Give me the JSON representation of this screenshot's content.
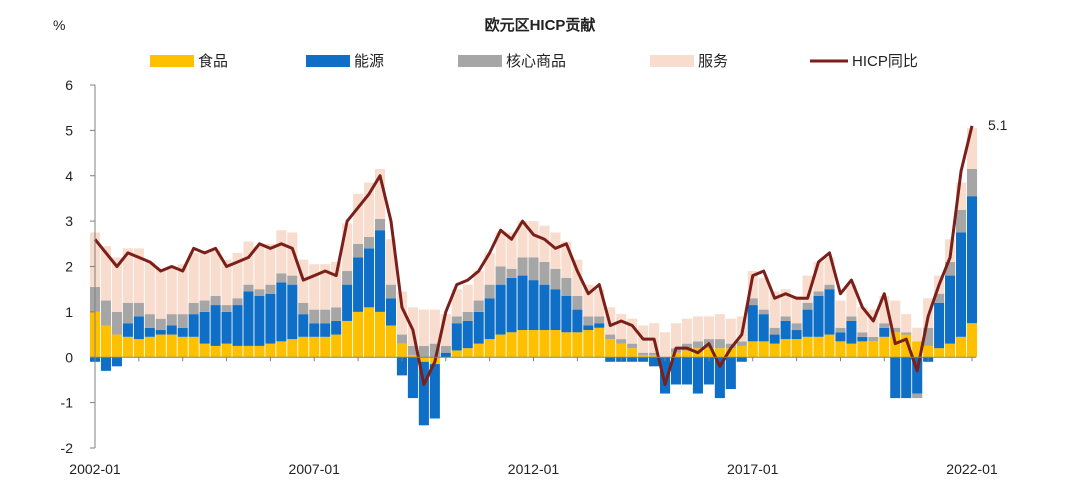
{
  "chart_data": {
    "type": "area",
    "title": "欧元区HICP贡献",
    "ylabel": "%",
    "xlabel": "",
    "ylim": [
      -2,
      6
    ],
    "yticks": [
      -2,
      -1,
      0,
      1,
      2,
      3,
      4,
      5,
      6
    ],
    "x_start": "2002-01",
    "x_end": "2022-01",
    "xtick_labels": [
      "2002-01",
      "2007-01",
      "2012-01",
      "2017-01",
      "2022-01"
    ],
    "legend_position": "top",
    "grid": false,
    "end_annotation": "5.1",
    "x": [
      "2002-01",
      "2002-04",
      "2002-07",
      "2002-10",
      "2003-01",
      "2003-04",
      "2003-07",
      "2003-10",
      "2004-01",
      "2004-04",
      "2004-07",
      "2004-10",
      "2005-01",
      "2005-04",
      "2005-07",
      "2005-10",
      "2006-01",
      "2006-04",
      "2006-07",
      "2006-10",
      "2007-01",
      "2007-04",
      "2007-07",
      "2007-10",
      "2008-01",
      "2008-04",
      "2008-07",
      "2008-10",
      "2009-01",
      "2009-04",
      "2009-07",
      "2009-10",
      "2010-01",
      "2010-04",
      "2010-07",
      "2010-10",
      "2011-01",
      "2011-04",
      "2011-07",
      "2011-10",
      "2012-01",
      "2012-04",
      "2012-07",
      "2012-10",
      "2013-01",
      "2013-04",
      "2013-07",
      "2013-10",
      "2014-01",
      "2014-04",
      "2014-07",
      "2014-10",
      "2015-01",
      "2015-04",
      "2015-07",
      "2015-10",
      "2016-01",
      "2016-04",
      "2016-07",
      "2016-10",
      "2017-01",
      "2017-04",
      "2017-07",
      "2017-10",
      "2018-01",
      "2018-04",
      "2018-07",
      "2018-10",
      "2019-01",
      "2019-04",
      "2019-07",
      "2019-10",
      "2020-01",
      "2020-04",
      "2020-07",
      "2020-10",
      "2021-01",
      "2021-04",
      "2021-07",
      "2021-10",
      "2022-01"
    ],
    "series": [
      {
        "name": "食品",
        "kind": "stack",
        "color": "#FFC000",
        "values": [
          1.0,
          0.7,
          0.5,
          0.45,
          0.4,
          0.45,
          0.5,
          0.5,
          0.45,
          0.45,
          0.3,
          0.25,
          0.3,
          0.25,
          0.25,
          0.25,
          0.3,
          0.35,
          0.4,
          0.45,
          0.45,
          0.45,
          0.5,
          0.8,
          1.0,
          1.1,
          1.0,
          0.7,
          0.3,
          0.05,
          -0.1,
          -0.15,
          0.0,
          0.15,
          0.2,
          0.3,
          0.4,
          0.5,
          0.55,
          0.6,
          0.6,
          0.6,
          0.6,
          0.55,
          0.55,
          0.6,
          0.65,
          0.4,
          0.3,
          0.2,
          0.05,
          0.05,
          0.0,
          0.1,
          0.15,
          0.2,
          0.2,
          0.2,
          0.2,
          0.25,
          0.35,
          0.35,
          0.3,
          0.4,
          0.4,
          0.45,
          0.45,
          0.5,
          0.35,
          0.3,
          0.35,
          0.35,
          0.45,
          0.55,
          0.5,
          0.35,
          0.25,
          0.2,
          0.3,
          0.45,
          0.75
        ]
      },
      {
        "name": "能源",
        "kind": "stack",
        "color": "#0F6FC6",
        "values": [
          -0.1,
          -0.3,
          -0.2,
          0.3,
          0.5,
          0.2,
          0.1,
          0.2,
          0.2,
          0.5,
          0.7,
          0.9,
          0.7,
          0.9,
          1.2,
          1.1,
          1.1,
          1.3,
          1.2,
          0.5,
          0.3,
          0.3,
          0.3,
          0.8,
          1.2,
          1.3,
          1.8,
          0.6,
          -0.4,
          -0.9,
          -1.4,
          -1.2,
          0.1,
          0.6,
          0.6,
          0.7,
          0.9,
          1.1,
          1.2,
          1.2,
          1.1,
          1.0,
          0.9,
          0.8,
          0.5,
          0.1,
          0.1,
          -0.1,
          -0.1,
          -0.1,
          -0.1,
          -0.2,
          -0.8,
          -0.6,
          -0.6,
          -0.8,
          -0.6,
          -0.9,
          -0.7,
          -0.1,
          0.8,
          0.6,
          0.2,
          0.4,
          0.2,
          0.6,
          0.9,
          1.0,
          0.2,
          0.5,
          0.1,
          0.0,
          0.2,
          -0.9,
          -0.9,
          -0.8,
          -0.1,
          1.0,
          1.5,
          2.3,
          2.8
        ]
      },
      {
        "name": "核心商品",
        "kind": "stack",
        "color": "#A6A6A6",
        "values": [
          0.55,
          0.55,
          0.5,
          0.45,
          0.3,
          0.3,
          0.25,
          0.25,
          0.3,
          0.25,
          0.25,
          0.2,
          0.15,
          0.15,
          0.15,
          0.15,
          0.2,
          0.2,
          0.2,
          0.25,
          0.3,
          0.3,
          0.3,
          0.3,
          0.3,
          0.25,
          0.25,
          0.3,
          0.2,
          0.2,
          0.25,
          0.3,
          0.15,
          0.15,
          0.2,
          0.25,
          0.3,
          0.4,
          0.2,
          0.4,
          0.5,
          0.5,
          0.45,
          0.4,
          0.3,
          0.2,
          0.15,
          0.1,
          0.1,
          0.1,
          0.05,
          0.05,
          0.0,
          0.1,
          0.15,
          0.15,
          0.2,
          0.2,
          0.1,
          0.1,
          0.15,
          0.1,
          0.15,
          0.1,
          0.15,
          0.15,
          0.1,
          0.1,
          0.1,
          0.1,
          0.1,
          0.1,
          0.1,
          0.1,
          0.05,
          -0.1,
          0.4,
          0.2,
          0.3,
          0.5,
          0.6
        ]
      },
      {
        "name": "服务",
        "kind": "stack",
        "color": "#F8DDCE",
        "values": [
          1.2,
          1.2,
          1.2,
          1.2,
          1.2,
          1.15,
          1.1,
          1.05,
          1.1,
          1.1,
          1.05,
          1.0,
          1.0,
          1.0,
          0.95,
          0.95,
          0.9,
          0.95,
          0.95,
          0.95,
          1.0,
          1.0,
          1.0,
          1.05,
          1.1,
          1.2,
          1.1,
          1.0,
          0.95,
          0.85,
          0.8,
          0.75,
          0.7,
          0.6,
          0.6,
          0.65,
          0.7,
          0.75,
          0.8,
          0.8,
          0.8,
          0.8,
          0.8,
          0.8,
          0.8,
          0.7,
          0.6,
          0.6,
          0.55,
          0.55,
          0.6,
          0.65,
          0.55,
          0.55,
          0.55,
          0.55,
          0.5,
          0.55,
          0.55,
          0.55,
          0.6,
          0.7,
          0.8,
          0.6,
          0.6,
          0.6,
          0.65,
          0.6,
          0.6,
          0.7,
          0.55,
          0.6,
          0.6,
          0.6,
          0.4,
          0.3,
          0.65,
          0.4,
          0.5,
          0.6,
          0.9
        ]
      },
      {
        "name": "HICP同比",
        "kind": "line",
        "color": "#7B1F1A",
        "values": [
          2.6,
          2.3,
          2.0,
          2.3,
          2.2,
          2.1,
          1.9,
          2.0,
          1.9,
          2.4,
          2.3,
          2.4,
          2.0,
          2.1,
          2.2,
          2.5,
          2.4,
          2.5,
          2.4,
          1.7,
          1.8,
          1.9,
          1.8,
          3.0,
          3.3,
          3.6,
          4.0,
          3.0,
          1.1,
          0.6,
          -0.6,
          -0.1,
          1.0,
          1.6,
          1.7,
          1.9,
          2.3,
          2.8,
          2.6,
          3.0,
          2.7,
          2.6,
          2.4,
          2.5,
          1.9,
          1.4,
          1.6,
          0.7,
          0.8,
          0.7,
          0.4,
          0.4,
          -0.6,
          0.2,
          0.2,
          0.1,
          0.3,
          -0.2,
          0.2,
          0.5,
          1.8,
          1.9,
          1.3,
          1.4,
          1.3,
          1.3,
          2.1,
          2.3,
          1.4,
          1.7,
          1.1,
          0.8,
          1.4,
          0.3,
          0.4,
          -0.3,
          0.9,
          1.6,
          2.2,
          4.1,
          5.1
        ]
      }
    ]
  }
}
